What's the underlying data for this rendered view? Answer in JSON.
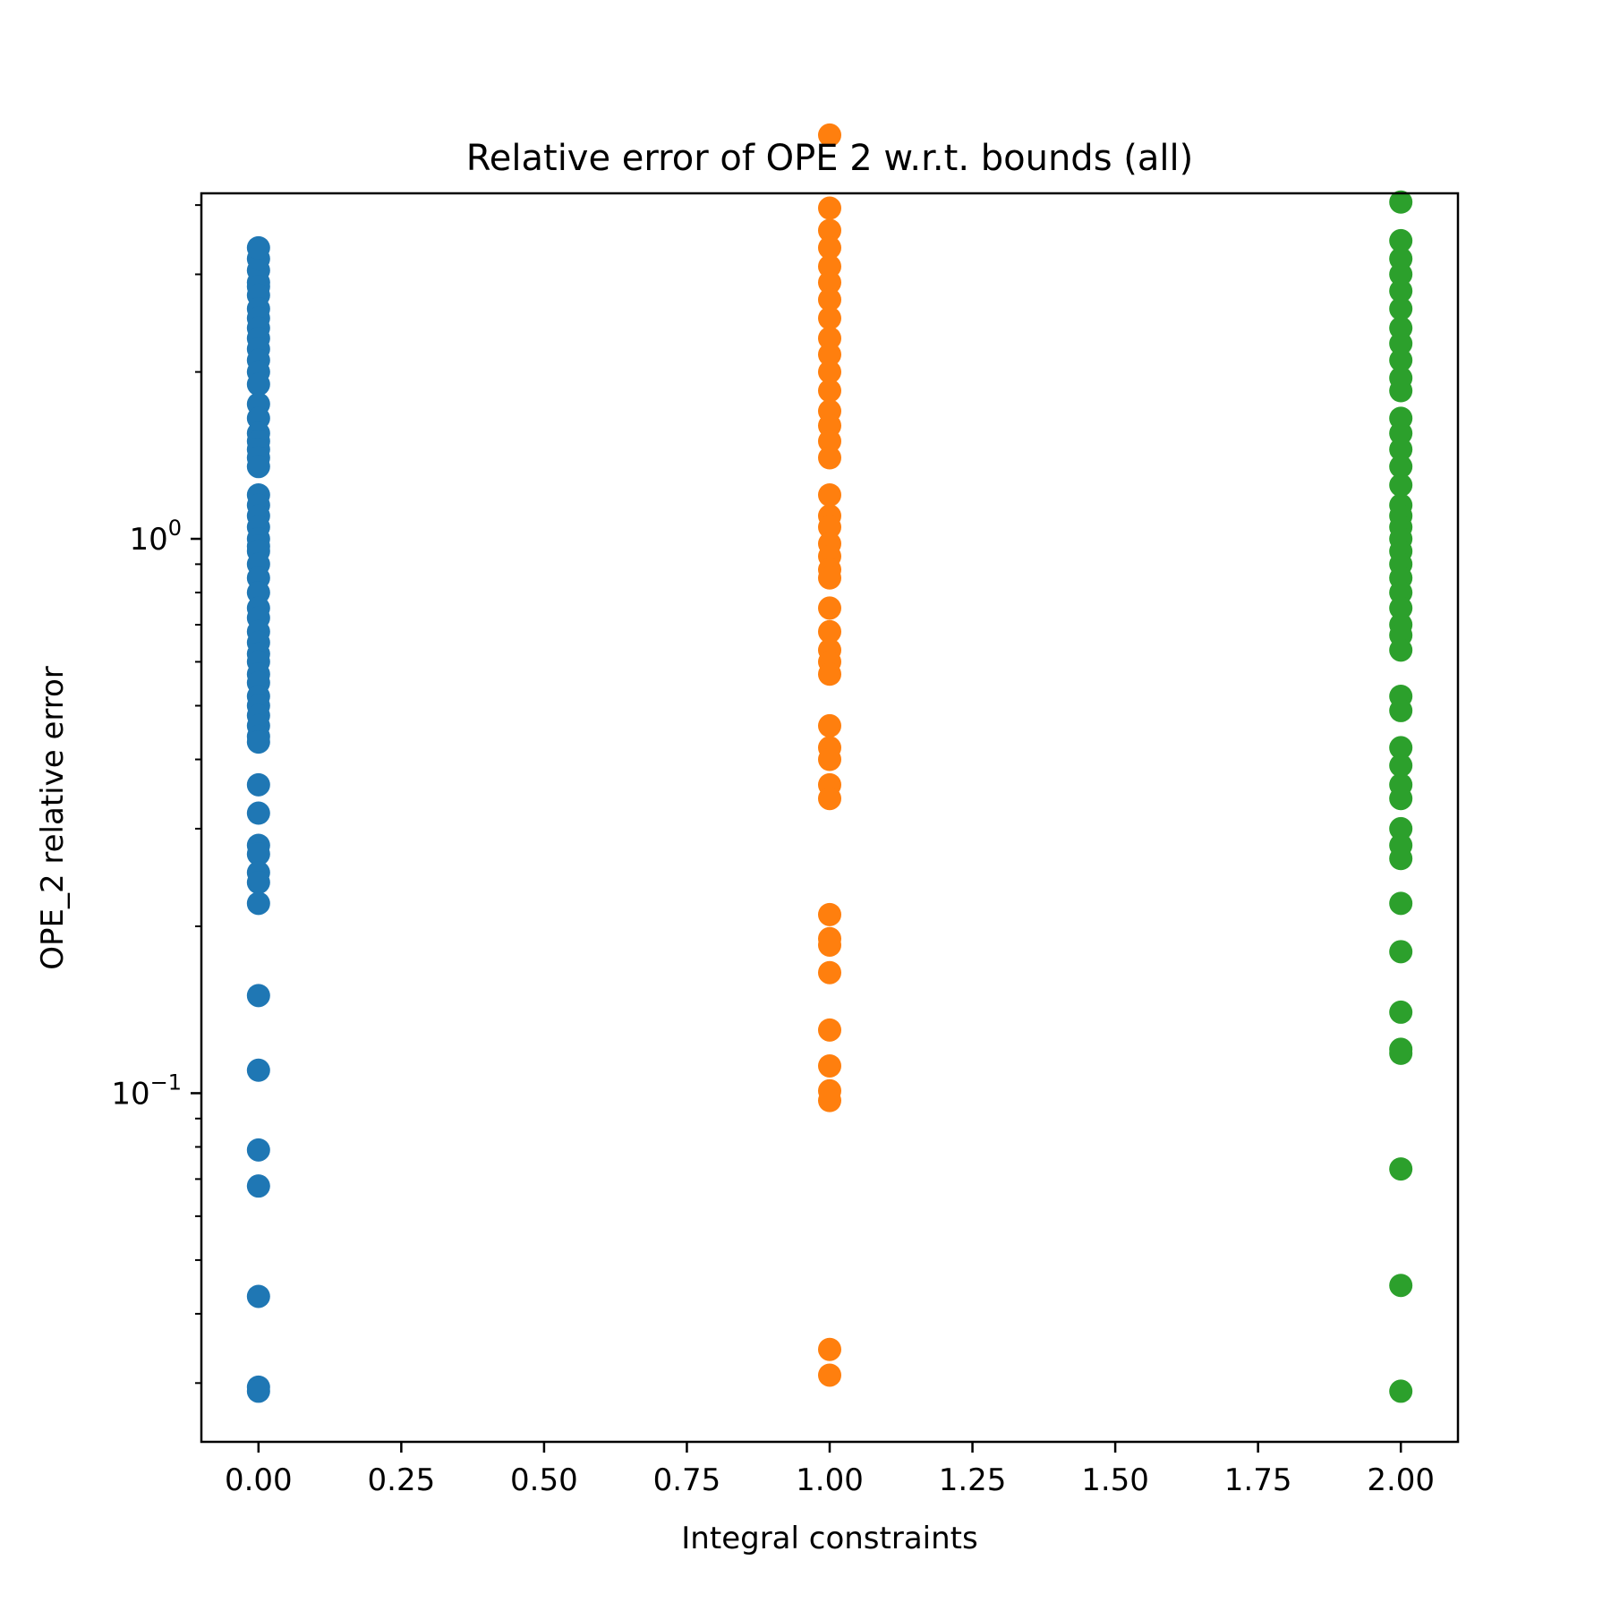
{
  "chart_data": {
    "type": "scatter",
    "title": "Relative error of OPE 2 w.r.t. bounds (all)",
    "xlabel": "Integral constraints",
    "ylabel": "OPE_2 relative error",
    "xlim": [
      -0.1,
      2.1
    ],
    "ylim": [
      0.0235,
      4.2
    ],
    "y_scale": "log",
    "grid": false,
    "x_ticks": [
      {
        "value": 0.0,
        "label": "0.00"
      },
      {
        "value": 0.25,
        "label": "0.25"
      },
      {
        "value": 0.5,
        "label": "0.50"
      },
      {
        "value": 0.75,
        "label": "0.75"
      },
      {
        "value": 1.0,
        "label": "1.00"
      },
      {
        "value": 1.25,
        "label": "1.25"
      },
      {
        "value": 1.5,
        "label": "1.50"
      },
      {
        "value": 1.75,
        "label": "1.75"
      },
      {
        "value": 2.0,
        "label": "2.00"
      }
    ],
    "y_major_ticks": [
      {
        "value": 0.1,
        "base": "10",
        "exp": "−1"
      },
      {
        "value": 1.0,
        "base": "10",
        "exp": "0"
      }
    ],
    "y_minor_ticks": [
      0.03,
      0.04,
      0.05,
      0.06,
      0.07,
      0.08,
      0.09,
      0.2,
      0.3,
      0.4,
      0.5,
      0.6,
      0.7,
      0.8,
      0.9,
      2,
      3,
      4
    ],
    "series": [
      {
        "color": "#1f77b4",
        "x": 0,
        "y": [
          2.9,
          3.05,
          3.2,
          3.35,
          2.85,
          2.75,
          2.6,
          2.5,
          2.4,
          2.3,
          2.2,
          2.1,
          2.0,
          1.9,
          1.75,
          1.65,
          1.55,
          1.5,
          1.45,
          1.4,
          1.35,
          1.2,
          1.15,
          1.1,
          1.05,
          1.0,
          0.97,
          0.95,
          0.9,
          0.85,
          0.8,
          0.75,
          0.72,
          0.68,
          0.65,
          0.62,
          0.6,
          0.57,
          0.55,
          0.52,
          0.5,
          0.48,
          0.46,
          0.44,
          0.43,
          0.36,
          0.32,
          0.28,
          0.27,
          0.25,
          0.24,
          0.22,
          0.15,
          0.11,
          0.079,
          0.068,
          0.043,
          0.0295,
          0.029
        ]
      },
      {
        "color": "#ff7f0e",
        "x": 1,
        "y": [
          5.35,
          3.95,
          3.6,
          3.35,
          3.1,
          2.9,
          2.7,
          2.5,
          2.3,
          2.15,
          2.0,
          1.85,
          1.7,
          1.6,
          1.5,
          1.4,
          1.2,
          1.1,
          1.05,
          0.98,
          0.93,
          0.88,
          0.85,
          0.75,
          0.68,
          0.63,
          0.6,
          0.57,
          0.46,
          0.42,
          0.4,
          0.36,
          0.34,
          0.21,
          0.19,
          0.185,
          0.165,
          0.13,
          0.112,
          0.101,
          0.097,
          0.0345,
          0.031
        ]
      },
      {
        "color": "#2ca02c",
        "x": 2,
        "y": [
          4.05,
          3.45,
          3.2,
          3.0,
          2.8,
          2.6,
          2.4,
          2.25,
          2.1,
          1.95,
          1.85,
          1.65,
          1.55,
          1.45,
          1.35,
          1.25,
          1.15,
          1.1,
          1.05,
          1.0,
          0.95,
          0.9,
          0.85,
          0.8,
          0.75,
          0.7,
          0.67,
          0.63,
          0.52,
          0.49,
          0.42,
          0.39,
          0.36,
          0.34,
          0.3,
          0.28,
          0.265,
          0.22,
          0.18,
          0.14,
          0.12,
          0.118,
          0.073,
          0.045,
          0.029
        ]
      }
    ]
  }
}
